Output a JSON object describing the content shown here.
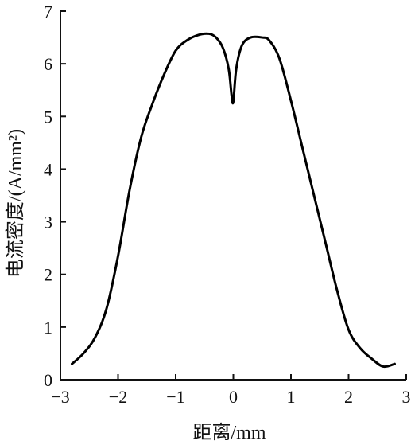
{
  "chart_data": {
    "type": "line",
    "title": "",
    "xlabel": "距离/mm",
    "ylabel": "电流密度/(A/mm²)",
    "xlim": [
      -3,
      3
    ],
    "ylim": [
      0,
      7
    ],
    "x_ticks": [
      -3,
      -2,
      -1,
      0,
      1,
      2,
      3
    ],
    "y_ticks": [
      0,
      1,
      2,
      3,
      4,
      5,
      6,
      7
    ],
    "x_tick_labels": [
      "−3",
      "−2",
      "−1",
      "0",
      "1",
      "2",
      "3"
    ],
    "y_tick_labels": [
      "0",
      "1",
      "2",
      "3",
      "4",
      "5",
      "6",
      "7"
    ],
    "grid": false,
    "line_color": "#000000",
    "series": [
      {
        "x": [
          -2.8,
          -2.6,
          -2.4,
          -2.2,
          -2.0,
          -1.8,
          -1.6,
          -1.4,
          -1.2,
          -1.0,
          -0.8,
          -0.6,
          -0.42,
          -0.3,
          -0.18,
          -0.08,
          -0.03,
          0.0,
          0.05,
          0.15,
          0.3,
          0.5,
          0.62,
          0.8,
          1.0,
          1.2,
          1.4,
          1.6,
          1.8,
          2.0,
          2.2,
          2.4,
          2.6,
          2.8
        ],
        "values": [
          0.3,
          0.5,
          0.8,
          1.35,
          2.35,
          3.6,
          4.6,
          5.25,
          5.8,
          6.25,
          6.45,
          6.55,
          6.57,
          6.5,
          6.3,
          5.9,
          5.4,
          5.28,
          5.9,
          6.35,
          6.5,
          6.5,
          6.45,
          6.1,
          5.3,
          4.4,
          3.5,
          2.6,
          1.7,
          0.95,
          0.6,
          0.4,
          0.25,
          0.3
        ]
      }
    ]
  }
}
